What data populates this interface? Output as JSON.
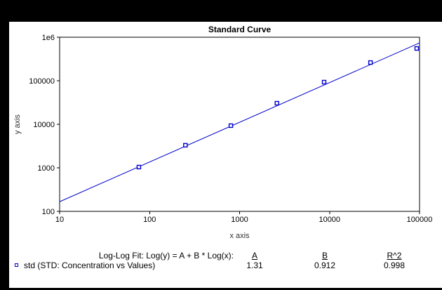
{
  "colors": {
    "frame_background": "#000000",
    "canvas_background": "#ffffff",
    "accent_blue": "#0000CC",
    "axis_black": "#000000"
  },
  "chart_data": {
    "type": "scatter",
    "title": "Standard Curve",
    "xlabel": "x axis",
    "ylabel": "y axis",
    "x_scale": "log",
    "y_scale": "log",
    "xlim": [
      10,
      100000
    ],
    "ylim": [
      100,
      1000000
    ],
    "grid": false,
    "x_ticks": {
      "values": [
        10,
        100,
        1000,
        10000,
        100000
      ],
      "labels": [
        "10",
        "100",
        "1000",
        "10000",
        "100000"
      ]
    },
    "y_ticks": {
      "values": [
        100,
        1000,
        10000,
        100000,
        1000000
      ],
      "labels": [
        "100",
        "1000",
        "10000",
        "100000",
        "1e6"
      ]
    },
    "series": [
      {
        "name": "std (STD: Concentration vs Values)",
        "marker": "open-square",
        "color": "#0000CC",
        "points_x": [
          76,
          250,
          800,
          2600,
          8700,
          28500,
          93000
        ],
        "points_y": [
          1040,
          3300,
          9300,
          30500,
          93000,
          262000,
          552000
        ]
      }
    ],
    "fit": {
      "label": "Log-Log Fit: Log(y) = A + B * Log(x):",
      "headers": [
        "A",
        "B",
        "R^2"
      ],
      "A": 1.31,
      "B": 0.912,
      "R2": 0.998,
      "values": [
        "1.31",
        "0.912",
        "0.998"
      ]
    },
    "legend_position": "bottom-left"
  }
}
